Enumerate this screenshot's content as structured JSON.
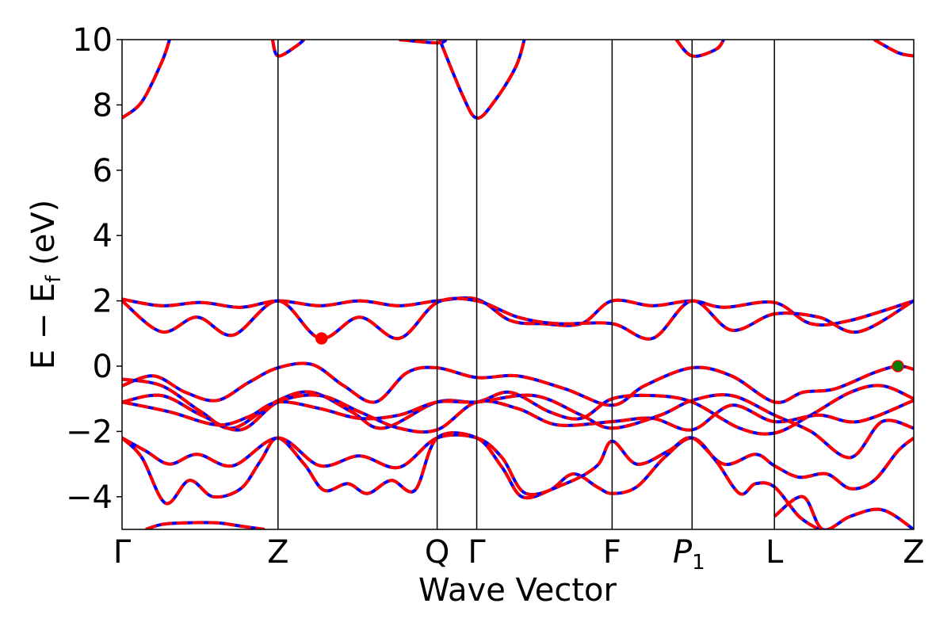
{
  "chart_data": {
    "type": "line",
    "xlabel": "Wave Vector",
    "ylabel": {
      "main": "E − E",
      "subscript": "f",
      "unit": "(eV)"
    },
    "ylim": [
      -5,
      10
    ],
    "yticks": [
      {
        "value": 10,
        "label": "10"
      },
      {
        "value": 8,
        "label": "8"
      },
      {
        "value": 6,
        "label": "6"
      },
      {
        "value": 4,
        "label": "4"
      },
      {
        "value": 2,
        "label": "2"
      },
      {
        "value": 0,
        "label": "0"
      },
      {
        "value": -2,
        "label": "−2"
      },
      {
        "value": -4,
        "label": "−4"
      }
    ],
    "kpoints": [
      {
        "label": "Γ",
        "x": 0.0
      },
      {
        "label": "Z",
        "x": 1.97
      },
      {
        "label": "Q",
        "x": 3.98
      },
      {
        "label": "Γ",
        "x": 4.48
      },
      {
        "label": "F",
        "x": 6.19
      },
      {
        "label": "P",
        "subscript": "1",
        "x": 7.2
      },
      {
        "label": "L",
        "x": 8.24
      },
      {
        "label": "Z",
        "x": 10.0
      }
    ],
    "xlim": [
      0,
      10
    ],
    "grid": false,
    "styles": {
      "band_color_solid": "#0000ff",
      "band_color_dashed": "#ff0000",
      "vline_color": "#000000"
    },
    "bands": [
      [
        [
          0,
          7.6
        ],
        [
          0.25,
          8.1
        ],
        [
          0.5,
          9.3
        ],
        [
          0.6,
          10
        ]
      ],
      [
        [
          0.3,
          -5
        ],
        [
          0.5,
          -4.85
        ],
        [
          0.8,
          -4.8
        ],
        [
          1.2,
          -4.8
        ],
        [
          1.5,
          -4.9
        ],
        [
          1.8,
          -5
        ]
      ],
      [
        [
          0,
          -2.2
        ],
        [
          0.25,
          -2.8
        ],
        [
          0.55,
          -4.2
        ],
        [
          0.85,
          -3.5
        ],
        [
          1.15,
          -4.0
        ],
        [
          1.5,
          -3.75
        ],
        [
          1.75,
          -2.9
        ],
        [
          1.97,
          -2.2
        ],
        [
          2.3,
          -3.0
        ],
        [
          2.55,
          -3.8
        ],
        [
          2.85,
          -3.6
        ],
        [
          3.1,
          -3.9
        ],
        [
          3.4,
          -3.5
        ],
        [
          3.7,
          -3.8
        ],
        [
          3.98,
          -2.2
        ],
        [
          4.48,
          -2.2
        ],
        [
          4.8,
          -3.1
        ],
        [
          5.05,
          -4.0
        ],
        [
          5.4,
          -3.8
        ],
        [
          5.7,
          -3.3
        ],
        [
          6.0,
          -3.7
        ],
        [
          6.19,
          -3.9
        ],
        [
          6.5,
          -3.7
        ],
        [
          6.85,
          -2.8
        ],
        [
          7.2,
          -2.2
        ],
        [
          7.5,
          -2.9
        ],
        [
          7.8,
          -3.9
        ],
        [
          8.0,
          -3.6
        ],
        [
          8.24,
          -3.7
        ],
        [
          8.55,
          -4.6
        ],
        [
          8.8,
          -5
        ]
      ],
      [
        [
          0,
          -2.2
        ],
        [
          0.3,
          -2.6
        ],
        [
          0.6,
          -3.0
        ],
        [
          0.95,
          -2.7
        ],
        [
          1.4,
          -3.05
        ],
        [
          1.97,
          -2.2
        ],
        [
          2.5,
          -3.05
        ],
        [
          3.0,
          -2.75
        ],
        [
          3.5,
          -3.1
        ],
        [
          3.98,
          -2.2
        ],
        [
          4.48,
          -2.2
        ],
        [
          4.8,
          -2.8
        ],
        [
          5.1,
          -3.9
        ],
        [
          5.6,
          -3.6
        ],
        [
          6.0,
          -3.05
        ],
        [
          6.19,
          -2.3
        ],
        [
          6.5,
          -3.0
        ],
        [
          6.9,
          -2.6
        ],
        [
          7.2,
          -2.2
        ],
        [
          7.6,
          -3.0
        ],
        [
          8.0,
          -2.7
        ],
        [
          8.24,
          -3.05
        ],
        [
          8.55,
          -3.4
        ],
        [
          8.9,
          -3.3
        ],
        [
          9.2,
          -3.75
        ],
        [
          9.5,
          -3.5
        ],
        [
          9.8,
          -2.6
        ],
        [
          10.0,
          -2.2
        ]
      ],
      [
        [
          8.24,
          -4.6
        ],
        [
          8.6,
          -4.0
        ],
        [
          8.85,
          -5
        ],
        [
          9.2,
          -4.6
        ],
        [
          9.6,
          -4.4
        ],
        [
          10.0,
          -5.0
        ]
      ],
      [
        [
          0,
          -0.6
        ],
        [
          0.4,
          -0.3
        ],
        [
          0.8,
          -0.8
        ],
        [
          1.2,
          -1.05
        ],
        [
          1.6,
          -0.5
        ],
        [
          1.97,
          -0.05
        ],
        [
          2.4,
          0.05
        ],
        [
          2.8,
          -0.6
        ],
        [
          3.2,
          -1.1
        ],
        [
          3.6,
          -0.2
        ],
        [
          3.98,
          -0.05
        ],
        [
          4.48,
          -0.35
        ],
        [
          5.0,
          -0.3
        ],
        [
          5.6,
          -0.7
        ],
        [
          6.19,
          -1.2
        ],
        [
          6.6,
          -0.6
        ],
        [
          7.2,
          -0.05
        ],
        [
          7.7,
          -0.3
        ],
        [
          8.24,
          -1.1
        ],
        [
          8.6,
          -0.8
        ],
        [
          9.0,
          -0.7
        ],
        [
          9.5,
          -0.2
        ],
        [
          9.8,
          0.0
        ],
        [
          10.0,
          -0.1
        ]
      ],
      [
        [
          0,
          -0.4
        ],
        [
          0.5,
          -0.6
        ],
        [
          1.0,
          -1.4
        ],
        [
          1.4,
          -1.9
        ],
        [
          1.97,
          -1.05
        ],
        [
          2.4,
          -0.8
        ],
        [
          2.9,
          -1.4
        ],
        [
          3.3,
          -1.9
        ],
        [
          3.98,
          -1.1
        ],
        [
          4.48,
          -1.1
        ],
        [
          4.9,
          -0.8
        ],
        [
          5.4,
          -1.4
        ],
        [
          5.8,
          -1.6
        ],
        [
          6.19,
          -1.0
        ],
        [
          6.7,
          -0.9
        ],
        [
          7.2,
          -1.1
        ],
        [
          7.8,
          -1.9
        ],
        [
          8.24,
          -2.05
        ],
        [
          8.7,
          -1.5
        ],
        [
          9.2,
          -0.8
        ],
        [
          9.6,
          -0.6
        ],
        [
          10.0,
          -1.0
        ]
      ],
      [
        [
          0,
          -1.1
        ],
        [
          0.5,
          -0.9
        ],
        [
          1.0,
          -1.5
        ],
        [
          1.5,
          -1.95
        ],
        [
          1.97,
          -1.1
        ],
        [
          2.5,
          -0.9
        ],
        [
          3.0,
          -1.4
        ],
        [
          3.5,
          -1.9
        ],
        [
          3.98,
          -1.95
        ],
        [
          4.48,
          -1.1
        ],
        [
          5.0,
          -1.3
        ],
        [
          5.5,
          -1.8
        ],
        [
          6.19,
          -1.7
        ],
        [
          6.7,
          -1.6
        ],
        [
          7.2,
          -1.95
        ],
        [
          7.7,
          -1.2
        ],
        [
          8.24,
          -1.7
        ],
        [
          8.8,
          -1.5
        ],
        [
          9.3,
          -1.7
        ],
        [
          10.0,
          -1.05
        ]
      ],
      [
        [
          0,
          -1.1
        ],
        [
          0.6,
          -1.4
        ],
        [
          1.2,
          -1.8
        ],
        [
          1.6,
          -1.55
        ],
        [
          1.97,
          -1.1
        ],
        [
          2.5,
          -1.3
        ],
        [
          3.0,
          -1.6
        ],
        [
          3.5,
          -1.5
        ],
        [
          3.98,
          -1.1
        ],
        [
          4.48,
          -1.1
        ],
        [
          5.2,
          -0.9
        ],
        [
          5.8,
          -1.5
        ],
        [
          6.19,
          -1.9
        ],
        [
          6.8,
          -1.5
        ],
        [
          7.2,
          -1.05
        ],
        [
          7.7,
          -0.9
        ],
        [
          8.24,
          -1.5
        ],
        [
          8.7,
          -2.0
        ],
        [
          9.2,
          -2.8
        ],
        [
          9.6,
          -1.7
        ],
        [
          10.0,
          -1.9
        ]
      ],
      [
        [
          0,
          2.05
        ],
        [
          0.5,
          1.85
        ],
        [
          1.0,
          1.95
        ],
        [
          1.5,
          1.8
        ],
        [
          1.97,
          2.0
        ],
        [
          2.5,
          1.85
        ],
        [
          3.0,
          2.0
        ],
        [
          3.5,
          1.85
        ],
        [
          3.98,
          2.0
        ],
        [
          4.48,
          2.05
        ],
        [
          4.9,
          1.4
        ],
        [
          5.3,
          1.3
        ],
        [
          5.8,
          1.3
        ],
        [
          6.19,
          2.0
        ],
        [
          6.7,
          1.85
        ],
        [
          7.2,
          2.0
        ],
        [
          7.6,
          1.8
        ],
        [
          8.24,
          1.95
        ],
        [
          8.7,
          1.3
        ],
        [
          9.2,
          1.4
        ],
        [
          10.0,
          2.0
        ]
      ],
      [
        [
          0,
          2.0
        ],
        [
          0.5,
          1.05
        ],
        [
          0.95,
          1.5
        ],
        [
          1.4,
          0.95
        ],
        [
          1.97,
          2.0
        ],
        [
          2.5,
          0.85
        ],
        [
          3.0,
          1.5
        ],
        [
          3.5,
          0.85
        ],
        [
          3.98,
          1.95
        ],
        [
          4.48,
          2.0
        ],
        [
          5.0,
          1.5
        ],
        [
          5.5,
          1.3
        ],
        [
          6.19,
          1.3
        ],
        [
          6.7,
          0.85
        ],
        [
          7.2,
          2.0
        ],
        [
          7.7,
          1.1
        ],
        [
          8.24,
          1.6
        ],
        [
          8.8,
          1.5
        ],
        [
          9.3,
          1.05
        ],
        [
          10.0,
          2.0
        ]
      ],
      [
        [
          3.98,
          10.2
        ],
        [
          4.3,
          8.3
        ],
        [
          4.48,
          7.6
        ],
        [
          4.7,
          8.1
        ],
        [
          4.98,
          9.2
        ],
        [
          5.1,
          10.2
        ]
      ],
      [
        [
          1.9,
          10
        ],
        [
          1.97,
          9.5
        ],
        [
          2.2,
          9.8
        ],
        [
          2.3,
          10
        ]
      ],
      [
        [
          3.5,
          10
        ],
        [
          3.98,
          9.9
        ],
        [
          4.1,
          10
        ]
      ],
      [
        [
          7.0,
          10
        ],
        [
          7.2,
          9.5
        ],
        [
          7.5,
          9.7
        ],
        [
          7.6,
          10
        ]
      ],
      [
        [
          9.5,
          10
        ],
        [
          9.8,
          9.6
        ],
        [
          10.0,
          9.5
        ]
      ]
    ],
    "markers": [
      {
        "x": 2.52,
        "y": 0.85,
        "color": "#ff0000"
      },
      {
        "x": 9.8,
        "y": 0.0,
        "color": "#008000"
      }
    ]
  }
}
